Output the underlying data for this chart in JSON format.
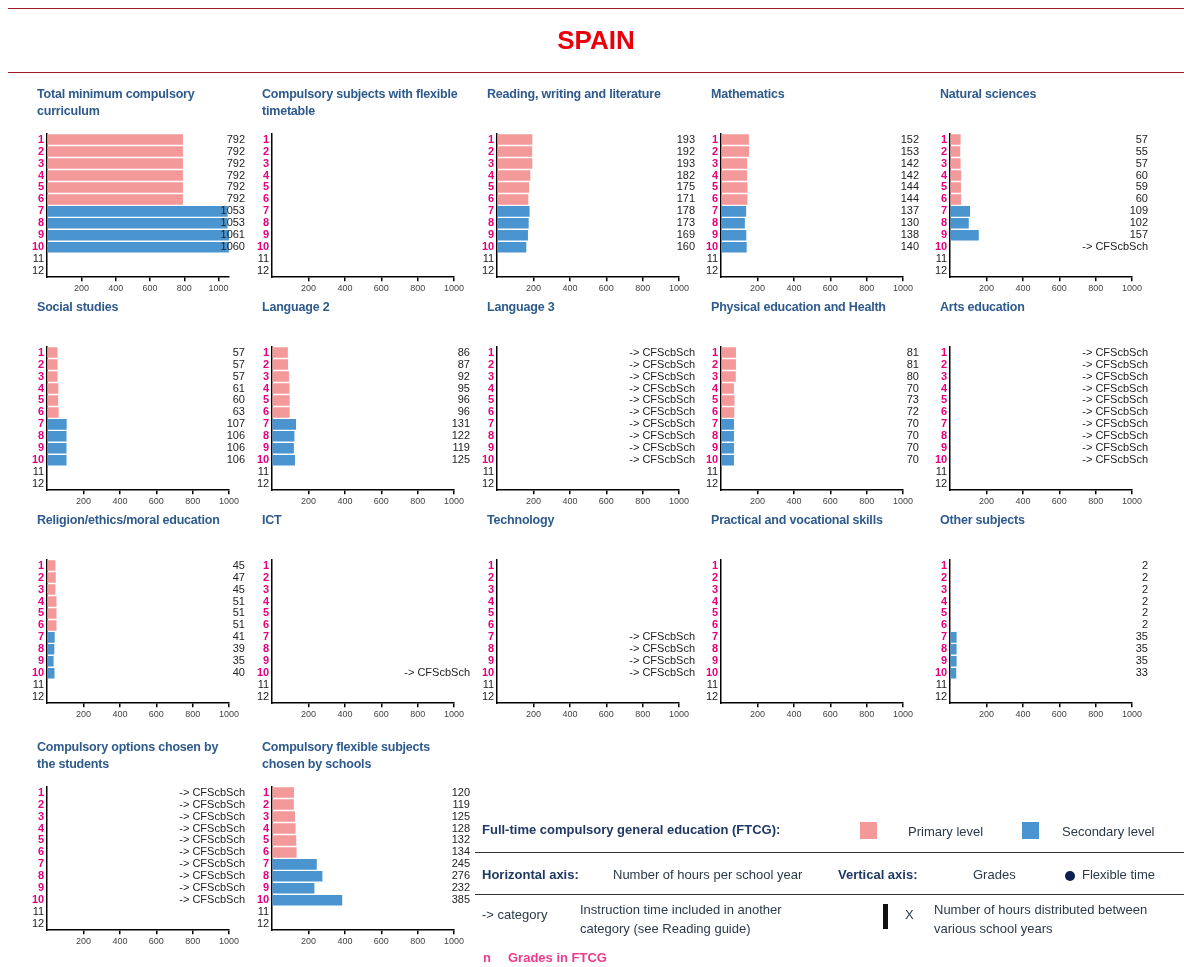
{
  "chart_data": [
    {
      "type": "other",
      "title": "SPAIN"
    },
    {
      "type": "bar",
      "orientation": "horizontal",
      "title": "Total minimum compulsory curriculum",
      "categories": [
        "1",
        "2",
        "3",
        "4",
        "5",
        "6",
        "7",
        "8",
        "9",
        "10",
        "11",
        "12"
      ],
      "values": [
        792,
        792,
        792,
        792,
        792,
        792,
        1053,
        1053,
        1061,
        1060,
        null,
        null
      ],
      "colors": [
        "#f4999a",
        "#f4999a",
        "#f4999a",
        "#f4999a",
        "#f4999a",
        "#f4999a",
        "#4a94d0",
        "#4a94d0",
        "#4a94d0",
        "#4a94d0",
        "#4a94d0",
        "#4a94d0"
      ],
      "value_labels": [
        "792",
        "792",
        "792",
        "792",
        "792",
        "792",
        "1053",
        "1053",
        "1061",
        "1060",
        null,
        null
      ],
      "xlim": [
        0,
        1061
      ],
      "xticks": [
        200,
        400,
        600,
        800,
        1000
      ]
    },
    {
      "type": "bar",
      "orientation": "horizontal",
      "title": "Compulsory subjects with flexible timetable",
      "categories": [
        "1",
        "2",
        "3",
        "4",
        "5",
        "6",
        "7",
        "8",
        "9",
        "10",
        "11",
        "12"
      ],
      "values": [
        null,
        null,
        null,
        null,
        null,
        null,
        null,
        null,
        null,
        null,
        null,
        null
      ],
      "xlim": [
        0,
        1000
      ],
      "xticks": [
        200,
        400,
        600,
        800,
        1000
      ]
    },
    {
      "type": "bar",
      "orientation": "horizontal",
      "title": "Reading, writing and literature",
      "categories": [
        "1",
        "2",
        "3",
        "4",
        "5",
        "6",
        "7",
        "8",
        "9",
        "10",
        "11",
        "12"
      ],
      "values": [
        193,
        192,
        193,
        182,
        175,
        171,
        178,
        173,
        169,
        160,
        null,
        null
      ],
      "colors": [
        "#f4999a",
        "#f4999a",
        "#f4999a",
        "#f4999a",
        "#f4999a",
        "#f4999a",
        "#4a94d0",
        "#4a94d0",
        "#4a94d0",
        "#4a94d0",
        "#4a94d0",
        "#4a94d0"
      ],
      "value_labels": [
        "193",
        "192",
        "193",
        "182",
        "175",
        "171",
        "178",
        "173",
        "169",
        "160",
        null,
        null
      ],
      "xlim": [
        0,
        1000
      ],
      "xticks": [
        200,
        400,
        600,
        800,
        1000
      ]
    },
    {
      "type": "bar",
      "orientation": "horizontal",
      "title": "Mathematics",
      "categories": [
        "1",
        "2",
        "3",
        "4",
        "5",
        "6",
        "7",
        "8",
        "9",
        "10",
        "11",
        "12"
      ],
      "values": [
        152,
        153,
        142,
        142,
        144,
        144,
        137,
        130,
        138,
        140,
        null,
        null
      ],
      "colors": [
        "#f4999a",
        "#f4999a",
        "#f4999a",
        "#f4999a",
        "#f4999a",
        "#f4999a",
        "#4a94d0",
        "#4a94d0",
        "#4a94d0",
        "#4a94d0",
        "#4a94d0",
        "#4a94d0"
      ],
      "value_labels": [
        "152",
        "153",
        "142",
        "142",
        "144",
        "144",
        "137",
        "130",
        "138",
        "140",
        null,
        null
      ],
      "xlim": [
        0,
        1000
      ],
      "xticks": [
        200,
        400,
        600,
        800,
        1000
      ]
    },
    {
      "type": "bar",
      "orientation": "horizontal",
      "title": "Natural sciences",
      "categories": [
        "1",
        "2",
        "3",
        "4",
        "5",
        "6",
        "7",
        "8",
        "9",
        "10",
        "11",
        "12"
      ],
      "values": [
        57,
        55,
        57,
        60,
        59,
        60,
        109,
        102,
        157,
        null,
        null,
        null
      ],
      "colors": [
        "#f4999a",
        "#f4999a",
        "#f4999a",
        "#f4999a",
        "#f4999a",
        "#f4999a",
        "#4a94d0",
        "#4a94d0",
        "#4a94d0",
        "#4a94d0",
        "#4a94d0",
        "#4a94d0"
      ],
      "value_labels": [
        "57",
        "55",
        "57",
        "60",
        "59",
        "60",
        "109",
        "102",
        "157",
        "-> CFScbSch",
        null,
        null
      ],
      "xlim": [
        0,
        1000
      ],
      "xticks": [
        200,
        400,
        600,
        800,
        1000
      ]
    },
    {
      "type": "bar",
      "orientation": "horizontal",
      "title": "Social studies",
      "categories": [
        "1",
        "2",
        "3",
        "4",
        "5",
        "6",
        "7",
        "8",
        "9",
        "10",
        "11",
        "12"
      ],
      "values": [
        57,
        57,
        57,
        61,
        60,
        63,
        107,
        106,
        106,
        106,
        null,
        null
      ],
      "colors": [
        "#f4999a",
        "#f4999a",
        "#f4999a",
        "#f4999a",
        "#f4999a",
        "#f4999a",
        "#4a94d0",
        "#4a94d0",
        "#4a94d0",
        "#4a94d0",
        "#4a94d0",
        "#4a94d0"
      ],
      "value_labels": [
        "57",
        "57",
        "57",
        "61",
        "60",
        "63",
        "107",
        "106",
        "106",
        "106",
        null,
        null
      ],
      "xlim": [
        0,
        1000
      ],
      "xticks": [
        200,
        400,
        600,
        800,
        1000
      ]
    },
    {
      "type": "bar",
      "orientation": "horizontal",
      "title": "Language 2",
      "categories": [
        "1",
        "2",
        "3",
        "4",
        "5",
        "6",
        "7",
        "8",
        "9",
        "10",
        "11",
        "12"
      ],
      "values": [
        86,
        87,
        92,
        95,
        96,
        96,
        131,
        122,
        119,
        125,
        null,
        null
      ],
      "colors": [
        "#f4999a",
        "#f4999a",
        "#f4999a",
        "#f4999a",
        "#f4999a",
        "#f4999a",
        "#4a94d0",
        "#4a94d0",
        "#4a94d0",
        "#4a94d0",
        "#4a94d0",
        "#4a94d0"
      ],
      "value_labels": [
        "86",
        "87",
        "92",
        "95",
        "96",
        "96",
        "131",
        "122",
        "119",
        "125",
        null,
        null
      ],
      "xlim": [
        0,
        1000
      ],
      "xticks": [
        200,
        400,
        600,
        800,
        1000
      ]
    },
    {
      "type": "bar",
      "orientation": "horizontal",
      "title": "Language 3",
      "categories": [
        "1",
        "2",
        "3",
        "4",
        "5",
        "6",
        "7",
        "8",
        "9",
        "10",
        "11",
        "12"
      ],
      "values": [
        null,
        null,
        null,
        null,
        null,
        null,
        null,
        null,
        null,
        null,
        null,
        null
      ],
      "value_labels": [
        "-> CFScbSch",
        "-> CFScbSch",
        "-> CFScbSch",
        "-> CFScbSch",
        "-> CFScbSch",
        "-> CFScbSch",
        "-> CFScbSch",
        "-> CFScbSch",
        "-> CFScbSch",
        "-> CFScbSch",
        null,
        null
      ],
      "xlim": [
        0,
        1000
      ],
      "xticks": [
        200,
        400,
        600,
        800,
        1000
      ]
    },
    {
      "type": "bar",
      "orientation": "horizontal",
      "title": "Physical education and Health",
      "categories": [
        "1",
        "2",
        "3",
        "4",
        "5",
        "6",
        "7",
        "8",
        "9",
        "10",
        "11",
        "12"
      ],
      "values": [
        81,
        81,
        80,
        70,
        73,
        72,
        70,
        70,
        70,
        70,
        null,
        null
      ],
      "colors": [
        "#f4999a",
        "#f4999a",
        "#f4999a",
        "#f4999a",
        "#f4999a",
        "#f4999a",
        "#4a94d0",
        "#4a94d0",
        "#4a94d0",
        "#4a94d0",
        "#4a94d0",
        "#4a94d0"
      ],
      "value_labels": [
        "81",
        "81",
        "80",
        "70",
        "73",
        "72",
        "70",
        "70",
        "70",
        "70",
        null,
        null
      ],
      "xlim": [
        0,
        1000
      ],
      "xticks": [
        200,
        400,
        600,
        800,
        1000
      ]
    },
    {
      "type": "bar",
      "orientation": "horizontal",
      "title": "Arts education",
      "categories": [
        "1",
        "2",
        "3",
        "4",
        "5",
        "6",
        "7",
        "8",
        "9",
        "10",
        "11",
        "12"
      ],
      "values": [
        null,
        null,
        null,
        null,
        null,
        null,
        null,
        null,
        null,
        null,
        null,
        null
      ],
      "value_labels": [
        "-> CFScbSch",
        "-> CFScbSch",
        "-> CFScbSch",
        "-> CFScbSch",
        "-> CFScbSch",
        "-> CFScbSch",
        "-> CFScbSch",
        "-> CFScbSch",
        "-> CFScbSch",
        "-> CFScbSch",
        null,
        null
      ],
      "xlim": [
        0,
        1000
      ],
      "xticks": [
        200,
        400,
        600,
        800,
        1000
      ]
    },
    {
      "type": "bar",
      "orientation": "horizontal",
      "title": "Religion/ethics/moral education",
      "categories": [
        "1",
        "2",
        "3",
        "4",
        "5",
        "6",
        "7",
        "8",
        "9",
        "10",
        "11",
        "12"
      ],
      "values": [
        45,
        47,
        45,
        51,
        51,
        51,
        41,
        39,
        35,
        40,
        null,
        null
      ],
      "colors": [
        "#f4999a",
        "#f4999a",
        "#f4999a",
        "#f4999a",
        "#f4999a",
        "#f4999a",
        "#4a94d0",
        "#4a94d0",
        "#4a94d0",
        "#4a94d0",
        "#4a94d0",
        "#4a94d0"
      ],
      "value_labels": [
        "45",
        "47",
        "45",
        "51",
        "51",
        "51",
        "41",
        "39",
        "35",
        "40",
        null,
        null
      ],
      "xlim": [
        0,
        1000
      ],
      "xticks": [
        200,
        400,
        600,
        800,
        1000
      ]
    },
    {
      "type": "bar",
      "orientation": "horizontal",
      "title": "ICT",
      "categories": [
        "1",
        "2",
        "3",
        "4",
        "5",
        "6",
        "7",
        "8",
        "9",
        "10",
        "11",
        "12"
      ],
      "values": [
        null,
        null,
        null,
        null,
        null,
        null,
        null,
        null,
        null,
        null,
        null,
        null
      ],
      "value_labels": [
        null,
        null,
        null,
        null,
        null,
        null,
        null,
        null,
        null,
        "-> CFScbSch",
        null,
        null
      ],
      "xlim": [
        0,
        1000
      ],
      "xticks": [
        200,
        400,
        600,
        800,
        1000
      ]
    },
    {
      "type": "bar",
      "orientation": "horizontal",
      "title": "Technology",
      "categories": [
        "1",
        "2",
        "3",
        "4",
        "5",
        "6",
        "7",
        "8",
        "9",
        "10",
        "11",
        "12"
      ],
      "values": [
        null,
        null,
        null,
        null,
        null,
        null,
        null,
        null,
        null,
        null,
        null,
        null
      ],
      "value_labels": [
        null,
        null,
        null,
        null,
        null,
        null,
        "-> CFScbSch",
        "-> CFScbSch",
        "-> CFScbSch",
        "-> CFScbSch",
        null,
        null
      ],
      "xlim": [
        0,
        1000
      ],
      "xticks": [
        200,
        400,
        600,
        800,
        1000
      ]
    },
    {
      "type": "bar",
      "orientation": "horizontal",
      "title": "Practical and vocational skills",
      "categories": [
        "1",
        "2",
        "3",
        "4",
        "5",
        "6",
        "7",
        "8",
        "9",
        "10",
        "11",
        "12"
      ],
      "values": [
        null,
        null,
        null,
        null,
        null,
        null,
        null,
        null,
        null,
        null,
        null,
        null
      ],
      "xlim": [
        0,
        1000
      ],
      "xticks": [
        200,
        400,
        600,
        800,
        1000
      ]
    },
    {
      "type": "bar",
      "orientation": "horizontal",
      "title": "Other subjects",
      "categories": [
        "1",
        "2",
        "3",
        "4",
        "5",
        "6",
        "7",
        "8",
        "9",
        "10",
        "11",
        "12"
      ],
      "values": [
        2,
        2,
        2,
        2,
        2,
        2,
        35,
        35,
        35,
        33,
        null,
        null
      ],
      "colors": [
        "#f4999a",
        "#f4999a",
        "#f4999a",
        "#f4999a",
        "#f4999a",
        "#f4999a",
        "#4a94d0",
        "#4a94d0",
        "#4a94d0",
        "#4a94d0",
        "#4a94d0",
        "#4a94d0"
      ],
      "value_labels": [
        "2",
        "2",
        "2",
        "2",
        "2",
        "2",
        "35",
        "35",
        "35",
        "33",
        null,
        null
      ],
      "xlim": [
        0,
        1000
      ],
      "xticks": [
        200,
        400,
        600,
        800,
        1000
      ]
    },
    {
      "type": "bar",
      "orientation": "horizontal",
      "title": "Compulsory options chosen by the students",
      "categories": [
        "1",
        "2",
        "3",
        "4",
        "5",
        "6",
        "7",
        "8",
        "9",
        "10",
        "11",
        "12"
      ],
      "values": [
        null,
        null,
        null,
        null,
        null,
        null,
        null,
        null,
        null,
        null,
        null,
        null
      ],
      "value_labels": [
        "-> CFScbSch",
        "-> CFScbSch",
        "-> CFScbSch",
        "-> CFScbSch",
        "-> CFScbSch",
        "-> CFScbSch",
        "-> CFScbSch",
        "-> CFScbSch",
        "-> CFScbSch",
        "-> CFScbSch",
        null,
        null
      ],
      "xlim": [
        0,
        1000
      ],
      "xticks": [
        200,
        400,
        600,
        800,
        1000
      ]
    },
    {
      "type": "bar",
      "orientation": "horizontal",
      "title": "Compulsory flexible subjects chosen by schools",
      "categories": [
        "1",
        "2",
        "3",
        "4",
        "5",
        "6",
        "7",
        "8",
        "9",
        "10",
        "11",
        "12"
      ],
      "values": [
        120,
        119,
        125,
        128,
        132,
        134,
        245,
        276,
        232,
        385,
        null,
        null
      ],
      "colors": [
        "#f4999a",
        "#f4999a",
        "#f4999a",
        "#f4999a",
        "#f4999a",
        "#f4999a",
        "#4a94d0",
        "#4a94d0",
        "#4a94d0",
        "#4a94d0",
        "#4a94d0",
        "#4a94d0"
      ],
      "value_labels": [
        "120",
        "119",
        "125",
        "128",
        "132",
        "134",
        "245",
        "276",
        "232",
        "385",
        null,
        null
      ],
      "xlim": [
        0,
        1000
      ],
      "xticks": [
        200,
        400,
        600,
        800,
        1000
      ]
    },
    {
      "type": "other",
      "colors": [
        "#f4999a",
        "#4a94d0"
      ],
      "annotations": [
        "Full-time compulsory general education (FTCG):",
        "Primary level",
        "Secondary level",
        "Horizontal axis:",
        "Number of hours per school year",
        "Vertical axis:",
        "Grades",
        "Flexible time",
        "-> category",
        "Instruction time included in another category (see Reading guide)",
        "X",
        "Number of hours distributed between various school years",
        "n",
        "Grades in FTCG"
      ]
    }
  ]
}
